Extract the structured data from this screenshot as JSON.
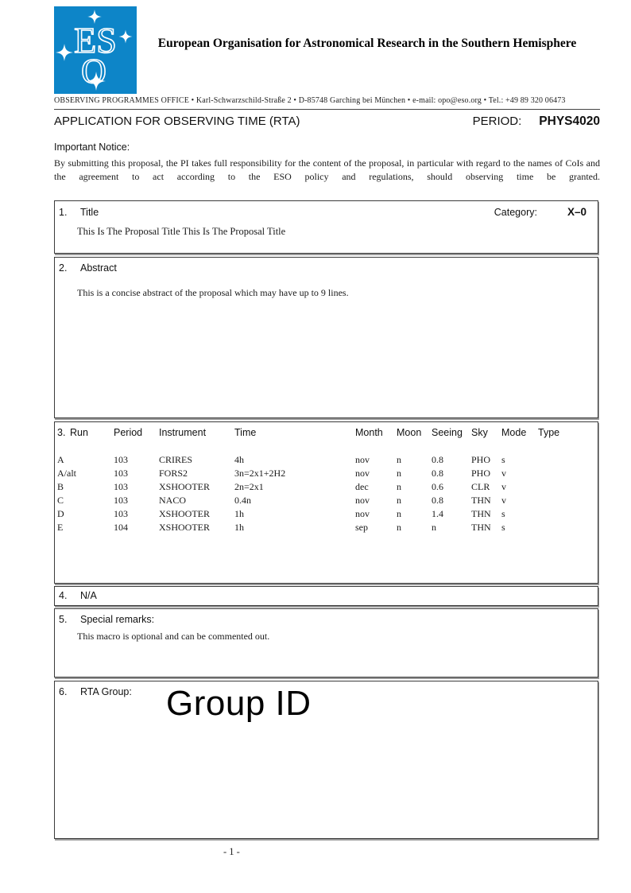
{
  "colors": {
    "logo_blue": "#0d85c8",
    "box_border": "#3a3a3a",
    "box_shadow": "#999999"
  },
  "header": {
    "logo": {
      "letters_top": "ES",
      "letters_bottom": "O",
      "color": "#0d85c8"
    },
    "org_name": "European Organisation for Astronomical Research in the Southern Hemisphere",
    "office_line": "OBSERVING PROGRAMMES OFFICE  •  Karl-Schwarzschild-Straße 2  •  D-85748 Garching bei München  •  e-mail: opo@eso.org  •  Tel.: +49 89 320 06473",
    "form_title": "APPLICATION FOR OBSERVING TIME (RTA)",
    "period_label": "PERIOD:",
    "period_value": "PHYS4020"
  },
  "notice": {
    "label": "Important Notice:",
    "text": "By submitting this proposal, the PI takes full responsibility for the content of the proposal, in particular with regard to the names of CoIs and the agreement to act according to the ESO policy and regulations, should observing time be granted."
  },
  "sections": {
    "title": {
      "number": "1.",
      "label": "Title",
      "category_label": "Category:",
      "category_value": "X–0",
      "content": "This Is The Proposal Title This Is The Proposal Title"
    },
    "abstract": {
      "number": "2.",
      "label": "Abstract",
      "content": "This is a concise abstract of the proposal which may have up to 9 lines."
    },
    "runs": {
      "number": "3.",
      "columns": [
        "Run",
        "Period",
        "Instrument",
        "Time",
        "Month",
        "Moon",
        "Seeing",
        "Sky",
        "Mode",
        "Type"
      ],
      "rows": [
        [
          "A",
          "103",
          "CRIRES",
          "4h",
          "nov",
          "n",
          "0.8",
          "PHO",
          "s",
          ""
        ],
        [
          "A/alt",
          "103",
          "FORS2",
          "3n=2x1+2H2",
          "nov",
          "n",
          "0.8",
          "PHO",
          "v",
          ""
        ],
        [
          "B",
          "103",
          "XSHOOTER",
          "2n=2x1",
          "dec",
          "n",
          "0.6",
          "CLR",
          "v",
          ""
        ],
        [
          "C",
          "103",
          "NACO",
          "0.4n",
          "nov",
          "n",
          "0.8",
          "THN",
          "v",
          ""
        ],
        [
          "D",
          "103",
          "XSHOOTER",
          "1h",
          "nov",
          "n",
          "1.4",
          "THN",
          "s",
          ""
        ],
        [
          "E",
          "104",
          "XSHOOTER",
          "1h",
          "sep",
          "n",
          "n",
          "THN",
          "s",
          ""
        ]
      ]
    },
    "na": {
      "number": "4.",
      "label": "N/A"
    },
    "remarks": {
      "number": "5.",
      "label": "Special remarks:",
      "content": "This macro is optional and can be commented out."
    },
    "group": {
      "number": "6.",
      "label": "RTA Group:",
      "value": "Group ID"
    }
  },
  "footer": {
    "page_number": "- 1 -"
  }
}
